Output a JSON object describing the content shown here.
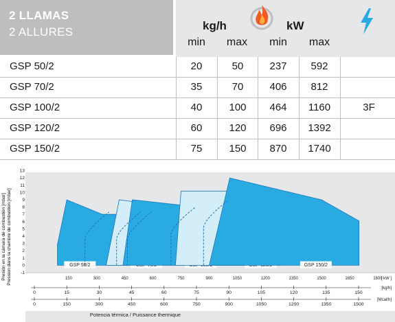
{
  "table": {
    "title_line1": "2 LLAMAS",
    "title_line2": "2 ALLURES",
    "unit_mass": "kg/h",
    "unit_power": "kW",
    "sub_min": "min",
    "sub_max": "max",
    "flame_icon": "flame-circle-icon",
    "electric_icon": "lightning-bolt-icon",
    "phase": "3F",
    "rows": [
      {
        "model": "GSP 50/2",
        "kgh_min": "20",
        "kgh_max": "50",
        "kw_min": "237",
        "kw_max": "592"
      },
      {
        "model": "GSP 70/2",
        "kgh_min": "35",
        "kgh_max": "70",
        "kw_min": "406",
        "kw_max": "812"
      },
      {
        "model": "GSP 100/2",
        "kgh_min": "40",
        "kgh_max": "100",
        "kw_min": "464",
        "kw_max": "1160"
      },
      {
        "model": "GSP 120/2",
        "kgh_min": "60",
        "kgh_max": "120",
        "kw_min": "696",
        "kw_max": "1392"
      },
      {
        "model": "GSP 150/2",
        "kgh_min": "75",
        "kgh_max": "150",
        "kw_min": "870",
        "kw_max": "1740"
      }
    ]
  },
  "chart_data": {
    "type": "area",
    "ylabel_line1": "Presión en la cámara de combustión [mbar]",
    "ylabel_line2": "Pression dans la chambre de combustion [mbar]",
    "xlabel": "Potencia térmica / Puissance thermique",
    "ylim": [
      -1,
      13
    ],
    "yticks": [
      "-1",
      "0",
      "1",
      "2",
      "3",
      "4",
      "5",
      "6",
      "7",
      "8",
      "9",
      "10",
      "11",
      "12",
      "13"
    ],
    "axes": [
      {
        "unit": "[ kW ]",
        "ticks": [
          "150",
          "300",
          "450",
          "600",
          "750",
          "900",
          "1050",
          "1200",
          "1350",
          "1500",
          "1650",
          "1800"
        ]
      },
      {
        "unit": "[kg/h]",
        "ticks": [
          "0",
          "15",
          "30",
          "45",
          "60",
          "75",
          "90",
          "105",
          "120",
          "135",
          "150"
        ]
      },
      {
        "unit": "[Mcal/h]",
        "ticks": [
          "0",
          "150",
          "300",
          "450",
          "600",
          "750",
          "900",
          "1050",
          "1200",
          "1350",
          "1500"
        ]
      }
    ],
    "series": [
      {
        "name": "GSP 50/2",
        "fill": "#29abe2",
        "x_kw": [
          90,
          90,
          140,
          330,
          440,
          480,
          480
        ],
        "y_mbar": [
          0,
          2.8,
          9,
          7,
          7,
          4.2,
          0
        ],
        "low_fire_kw": 237
      },
      {
        "name": "GSP 70/2",
        "fill": "#d3edf9",
        "x_kw": [
          350,
          420,
          650,
          690,
          720,
          720
        ],
        "y_mbar": [
          0,
          9,
          8.2,
          7.5,
          7,
          0
        ],
        "low_fire_kw": 406
      },
      {
        "name": "GSP 100/2",
        "fill": "#29abe2",
        "x_kw": [
          440,
          490,
          850,
          970,
          1090,
          1090
        ],
        "y_mbar": [
          0,
          9,
          8,
          7.6,
          6.7,
          0
        ],
        "low_fire_kw": 464
      },
      {
        "name": "GSP 120/2",
        "fill": "#d3edf9",
        "x_kw": [
          720,
          750,
          1270,
          1280,
          1280
        ],
        "y_mbar": [
          0,
          10.2,
          10.2,
          6.8,
          0
        ],
        "low_fire_kw": 696
      },
      {
        "name": "GSP 150/2",
        "fill": "#29abe2",
        "x_kw": [
          900,
          1010,
          1500,
          1700,
          1700
        ],
        "y_mbar": [
          0,
          12,
          9,
          6.1,
          0
        ],
        "low_fire_kw": 870
      }
    ],
    "grid": false
  },
  "colors": {
    "header_dark": "#bcbec0",
    "header_light": "#e6e7e8",
    "chart_bg": "#e6e7e8",
    "blue": "#29abe2",
    "light_blue": "#d3edf9",
    "accent_flame": "#f15a24",
    "accent_bolt": "#29abe2"
  }
}
